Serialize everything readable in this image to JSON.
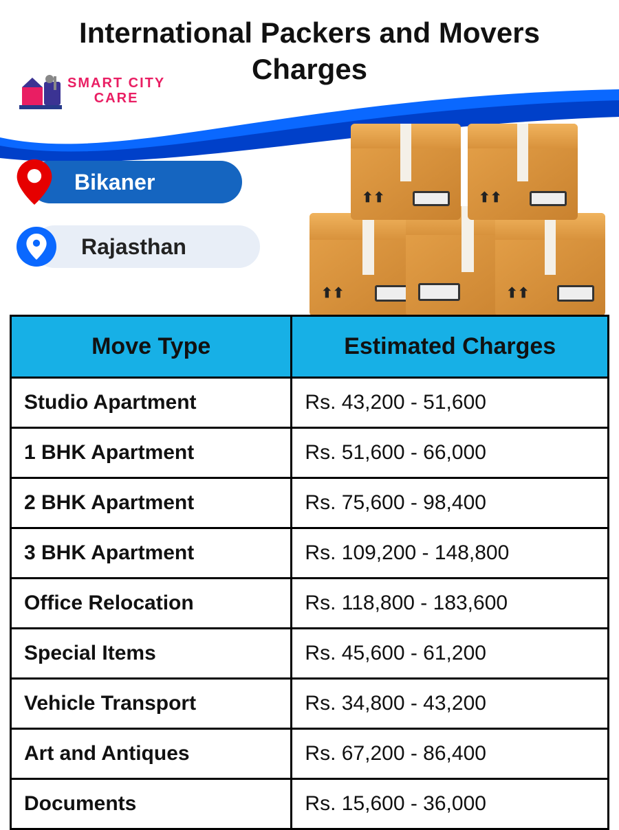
{
  "title": "International Packers and Movers Charges",
  "brand": {
    "line1": "SMART CITY",
    "line2": "CARE",
    "color": "#e91e63"
  },
  "swoosh": {
    "color1": "#0040c9",
    "color2": "#0a68ff"
  },
  "location": {
    "city": "Bikaner",
    "state": "Rajasthan",
    "city_pill_bg": "#1565c0",
    "state_pill_bg": "#e8eef7",
    "pin_red": "#e60000",
    "pin_blue": "#0a68ff"
  },
  "boxes_illustration": {
    "box_fill": "#e6a24a",
    "box_fill_dark": "#c9822f",
    "tape_color": "#f4f0e8"
  },
  "table": {
    "header_bg": "#17b0e6",
    "border_color": "#000000",
    "columns": [
      "Move Type",
      "Estimated Charges"
    ],
    "rows": [
      {
        "type": "Studio Apartment",
        "charge": "Rs. 43,200 - 51,600"
      },
      {
        "type": "1 BHK Apartment",
        "charge": "Rs. 51,600 - 66,000"
      },
      {
        "type": "2 BHK Apartment",
        "charge": "Rs. 75,600 - 98,400"
      },
      {
        "type": "3 BHK Apartment",
        "charge": "Rs. 109,200 - 148,800"
      },
      {
        "type": "Office Relocation",
        "charge": "Rs. 118,800 - 183,600"
      },
      {
        "type": "Special Items",
        "charge": "Rs. 45,600 - 61,200"
      },
      {
        "type": "Vehicle Transport",
        "charge": "Rs. 34,800 - 43,200"
      },
      {
        "type": "Art and Antiques",
        "charge": "Rs. 67,200 - 86,400"
      },
      {
        "type": "Documents",
        "charge": "Rs. 15,600 - 36,000"
      }
    ]
  }
}
